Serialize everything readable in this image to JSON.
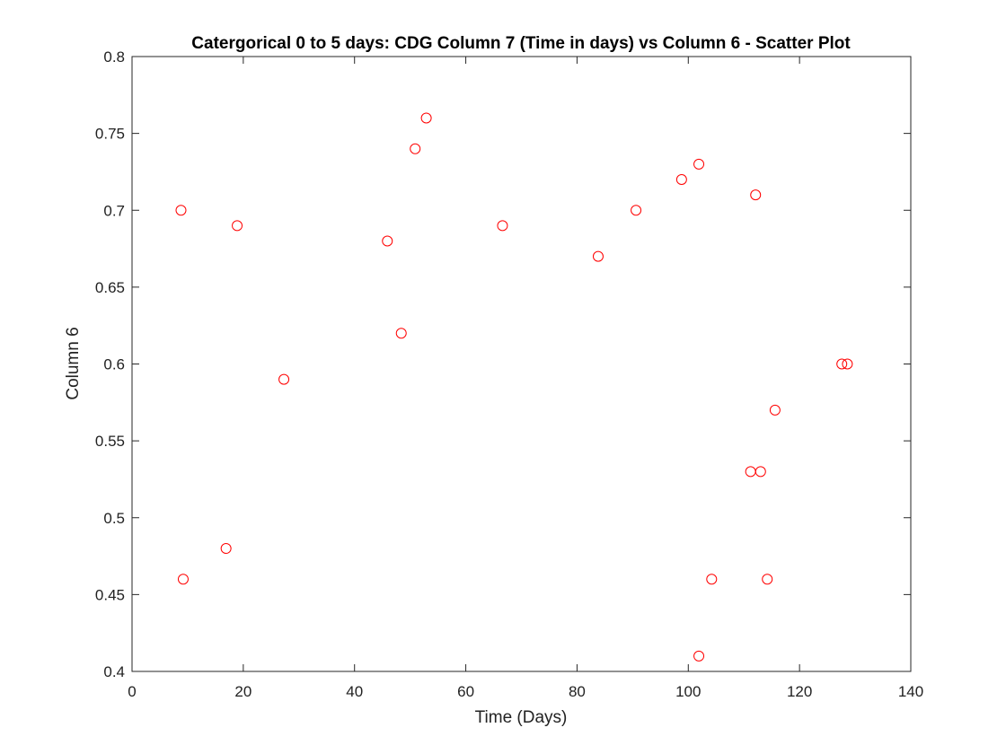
{
  "chart_data": {
    "type": "scatter",
    "title": "Catergorical 0 to 5 days: CDG Column 7 (Time in days) vs Column 6 - Scatter Plot",
    "xlabel": "Time (Days)",
    "ylabel": "Column 6",
    "xlim": [
      0,
      140
    ],
    "ylim": [
      0.4,
      0.8
    ],
    "x_ticks": [
      0,
      20,
      40,
      60,
      80,
      100,
      120,
      140
    ],
    "x_tick_labels": [
      "0",
      "20",
      "40",
      "60",
      "80",
      "100",
      "120",
      "140"
    ],
    "y_ticks": [
      0.4,
      0.45,
      0.5,
      0.55,
      0.6,
      0.65,
      0.7,
      0.75,
      0.8
    ],
    "y_tick_labels": [
      "0.4",
      "0.45",
      "0.5",
      "0.55",
      "0.6",
      "0.65",
      "0.7",
      "0.75",
      "0.8"
    ],
    "grid": false,
    "marker": "open-circle",
    "marker_color": "#ff0000",
    "axis_color": "#262626",
    "points": [
      {
        "x": 8.8,
        "y": 0.7
      },
      {
        "x": 9.2,
        "y": 0.46
      },
      {
        "x": 16.9,
        "y": 0.48
      },
      {
        "x": 18.9,
        "y": 0.69
      },
      {
        "x": 27.3,
        "y": 0.59
      },
      {
        "x": 45.9,
        "y": 0.68
      },
      {
        "x": 48.4,
        "y": 0.62
      },
      {
        "x": 50.9,
        "y": 0.74
      },
      {
        "x": 52.9,
        "y": 0.76
      },
      {
        "x": 66.6,
        "y": 0.69
      },
      {
        "x": 83.8,
        "y": 0.67
      },
      {
        "x": 90.6,
        "y": 0.7
      },
      {
        "x": 98.8,
        "y": 0.72
      },
      {
        "x": 101.9,
        "y": 0.73
      },
      {
        "x": 101.9,
        "y": 0.41
      },
      {
        "x": 104.2,
        "y": 0.46
      },
      {
        "x": 111.2,
        "y": 0.53
      },
      {
        "x": 112.1,
        "y": 0.71
      },
      {
        "x": 113.0,
        "y": 0.53
      },
      {
        "x": 114.2,
        "y": 0.46
      },
      {
        "x": 115.6,
        "y": 0.57
      },
      {
        "x": 127.6,
        "y": 0.6
      },
      {
        "x": 128.6,
        "y": 0.6
      }
    ]
  }
}
